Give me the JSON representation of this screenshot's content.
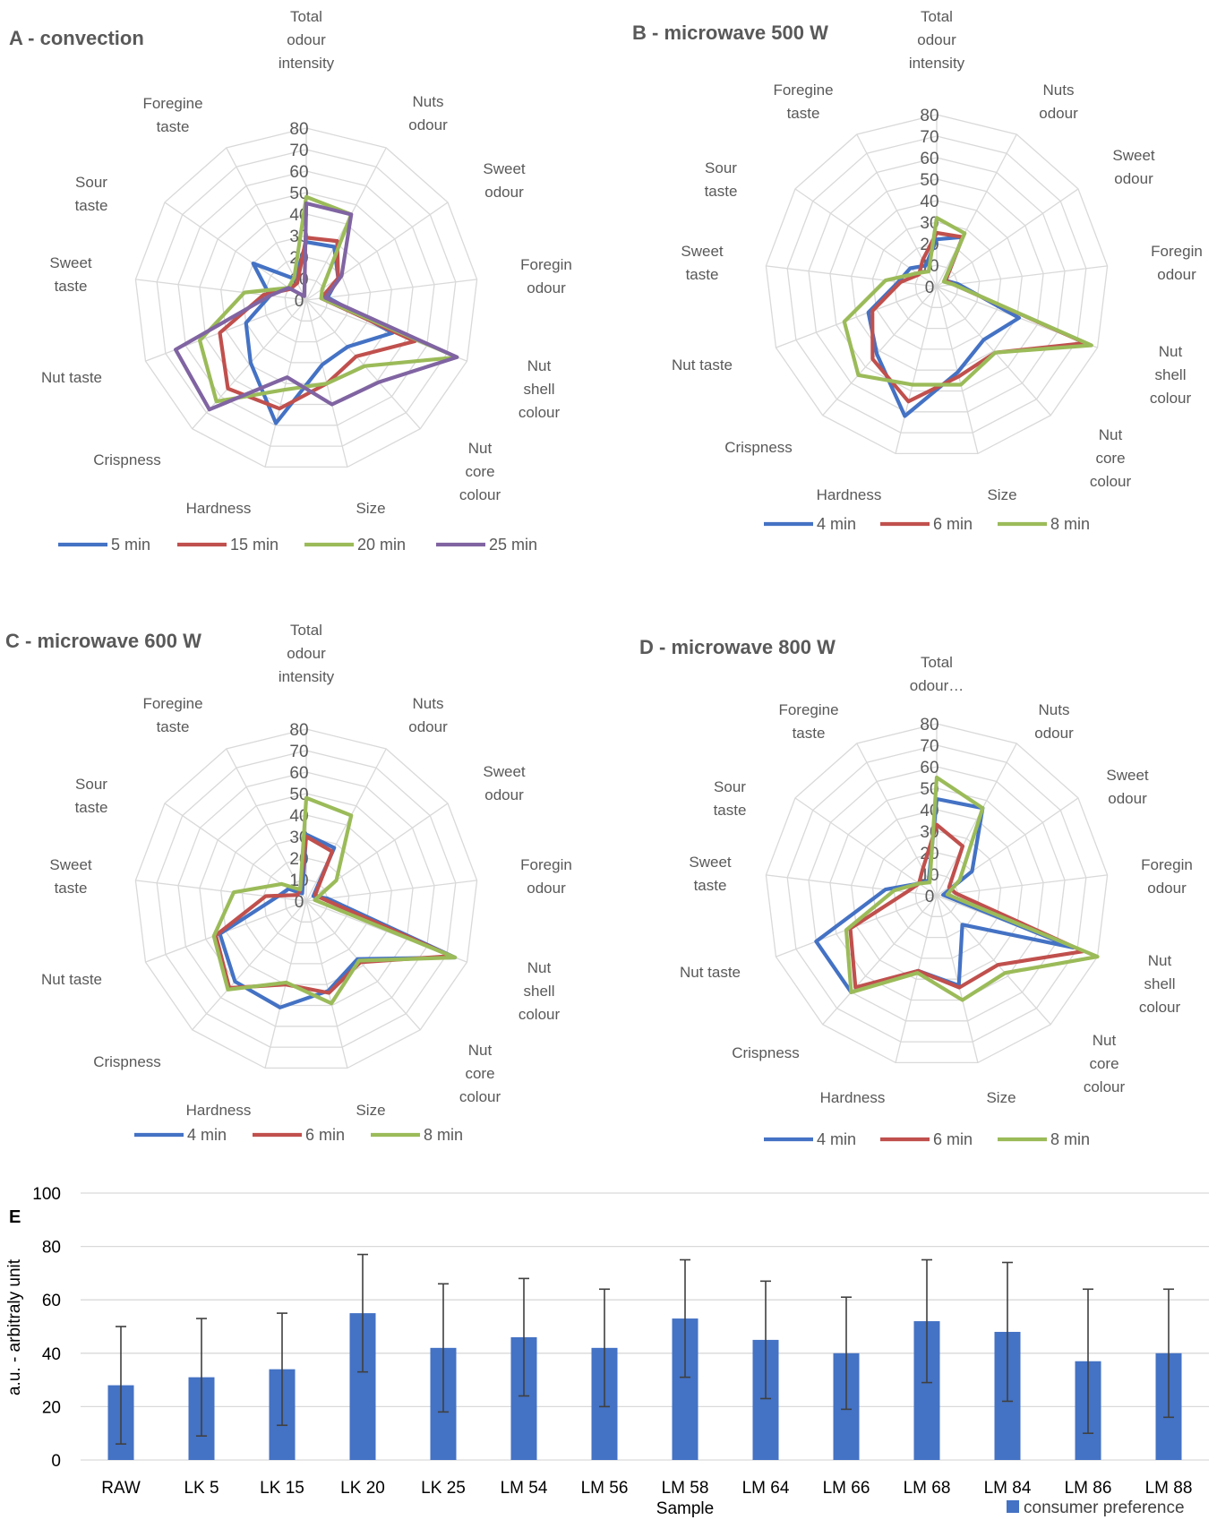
{
  "chart_data": [
    {
      "type": "radar",
      "panel_title": "A - convection",
      "axes": [
        "Total odour intensity",
        "Nuts odour",
        "Sweet odour",
        "Foregin odour",
        "Nut shell colour",
        "Nut core colour",
        "Size",
        "Hardness",
        "Crispness",
        "Nut taste",
        "Sweet taste",
        "Sour taste",
        "Foregine taste"
      ],
      "ticks": [
        "0",
        "10",
        "20",
        "30",
        "40",
        "50",
        "60",
        "70",
        "80"
      ],
      "rmax": 80,
      "series": [
        {
          "name": "5 min",
          "color": "#4472C4",
          "values": [
            27,
            28,
            18,
            10,
            43,
            29,
            31,
            59,
            39,
            30,
            17,
            30,
            11
          ]
        },
        {
          "name": "15 min",
          "color": "#C0504D",
          "values": [
            29,
            31,
            18,
            7,
            54,
            35,
            40,
            52,
            55,
            43,
            20,
            9,
            9
          ]
        },
        {
          "name": "20 min",
          "color": "#9BBB59",
          "values": [
            48,
            45,
            9,
            7,
            75,
            41,
            40,
            43,
            63,
            53,
            29,
            10,
            12
          ]
        },
        {
          "name": "25 min",
          "color": "#8064A2",
          "values": [
            45,
            45,
            20,
            9,
            75,
            51,
            50,
            37,
            68,
            65,
            17,
            10,
            2
          ]
        }
      ]
    },
    {
      "type": "radar",
      "panel_title": "B - microwave 500 W",
      "axes": [
        "Total odour intensity",
        "Nuts odour",
        "Sweet odour",
        "Foregin odour",
        "Nut shell colour",
        "Nut core colour",
        "Size",
        "Hardness",
        "Crispness",
        "Nut taste",
        "Sweet taste",
        "Sour taste",
        "Foregine taste"
      ],
      "ticks": [
        "0",
        "10",
        "20",
        "30",
        "40",
        "50",
        "60",
        "70",
        "80"
      ],
      "rmax": 80,
      "series": [
        {
          "name": "4 min",
          "color": "#4472C4",
          "values": [
            22,
            26,
            5,
            10,
            41,
            33,
            41,
            62,
            42,
            34,
            18,
            15,
            11
          ]
        },
        {
          "name": "6 min",
          "color": "#C0504D",
          "values": [
            25,
            26,
            5,
            8,
            74,
            41,
            43,
            55,
            45,
            32,
            17,
            10,
            14
          ]
        },
        {
          "name": "8 min",
          "color": "#9BBB59",
          "values": [
            32,
            28,
            4,
            8,
            77,
            41,
            47,
            47,
            55,
            46,
            24,
            11,
            8
          ]
        }
      ]
    },
    {
      "type": "radar",
      "panel_title": "C - microwave 600 W",
      "axes": [
        "Total odour intensity",
        "Nuts odour",
        "Sweet odour",
        "Foregin odour",
        "Nut shell colour",
        "Nut core colour",
        "Size",
        "Hardness",
        "Crispness",
        "Nut taste",
        "Sweet taste",
        "Sour taste",
        "Foregine taste"
      ],
      "ticks": [
        "0",
        "10",
        "20",
        "30",
        "40",
        "50",
        "60",
        "70",
        "80"
      ],
      "rmax": 80,
      "series": [
        {
          "name": "4 min",
          "color": "#4472C4",
          "values": [
            31,
            28,
            4,
            10,
            74,
            36,
            43,
            51,
            50,
            43,
            14,
            10,
            4
          ]
        },
        {
          "name": "6 min",
          "color": "#C0504D",
          "values": [
            30,
            26,
            5,
            8,
            72,
            38,
            44,
            40,
            54,
            45,
            19,
            5,
            6
          ]
        },
        {
          "name": "8 min",
          "color": "#9BBB59",
          "values": [
            48,
            45,
            17,
            4,
            74,
            37,
            49,
            39,
            55,
            46,
            34,
            14,
            6
          ]
        }
      ]
    },
    {
      "type": "radar",
      "panel_title": "D - microwave 800 W",
      "axes": [
        "Total odour…",
        "Nuts odour",
        "Sweet odour",
        "Foregin odour",
        "Nut shell colour",
        "Nut core colour",
        "Size",
        "Hardness",
        "Crispness",
        "Nut taste",
        "Sweet taste",
        "Sour taste",
        "Foregine taste"
      ],
      "ticks": [
        "0",
        "10",
        "20",
        "30",
        "40",
        "50",
        "60",
        "70",
        "80"
      ],
      "rmax": 80,
      "series": [
        {
          "name": "4 min",
          "color": "#4472C4",
          "values": [
            45,
            46,
            20,
            3,
            68,
            18,
            43,
            36,
            60,
            60,
            24,
            10,
            8
          ]
        },
        {
          "name": "6 min",
          "color": "#C0504D",
          "values": [
            33,
            26,
            7,
            9,
            73,
            43,
            44,
            36,
            57,
            43,
            14,
            10,
            14
          ]
        },
        {
          "name": "8 min",
          "color": "#9BBB59",
          "values": [
            55,
            46,
            13,
            5,
            80,
            48,
            50,
            37,
            60,
            45,
            20,
            10,
            7
          ]
        }
      ]
    },
    {
      "type": "bar",
      "panel_title": "E",
      "categories": [
        "RAW",
        "LK 5",
        "LK 15",
        "LK 20",
        "LK 25",
        "LM 54",
        "LM 56",
        "LM 58",
        "LM 64",
        "LM 66",
        "LM 68",
        "LM 84",
        "LM 86",
        "LM 88"
      ],
      "series": [
        {
          "name": "consumer preference",
          "color": "#4472C4",
          "values": [
            28,
            31,
            34,
            55,
            42,
            46,
            42,
            53,
            45,
            40,
            52,
            48,
            37,
            40
          ],
          "error": [
            22,
            22,
            21,
            22,
            24,
            22,
            22,
            22,
            22,
            21,
            23,
            26,
            27,
            24
          ]
        }
      ],
      "ylabel": "a.u. - arbitraly unit",
      "xlabel": "Sample",
      "ylim": [
        0,
        100
      ],
      "yticks": [
        "0",
        "20",
        "40",
        "60",
        "80",
        "100"
      ],
      "grid": true,
      "legend": "bottom-right"
    }
  ]
}
